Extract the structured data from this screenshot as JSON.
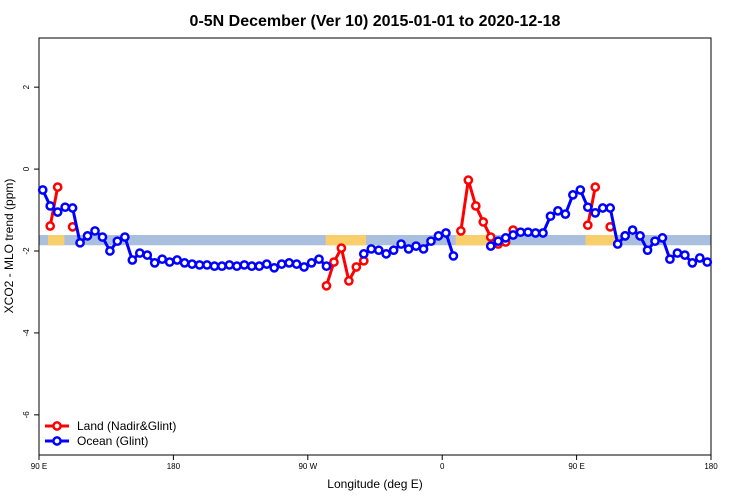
{
  "chart_data": {
    "type": "line",
    "title": "0-5N December (Ver 10)   2015-01-01 to 2020-12-18",
    "x_label": "Longitude (deg E)",
    "y_label": "XCO2 - MLO trend (ppm)",
    "xlim": [
      90,
      540
    ],
    "ylim": [
      -6.98,
      3.2
    ],
    "xticks": [
      {
        "value": 90,
        "label": "90 E"
      },
      180,
      {
        "value": 270,
        "label": "90 W"
      },
      {
        "value": 360,
        "label": "0"
      },
      {
        "value": 450,
        "label": "90 E"
      },
      {
        "value": 540,
        "label": "180"
      }
    ],
    "yticks": [
      -6,
      -4,
      -2,
      0,
      2
    ],
    "legend_position": "bottomleft",
    "mask_band": {
      "ylim": [
        -1.86,
        -1.61
      ],
      "color": "#a9bfdd",
      "land_color": "#f8cf6a",
      "land_segments": [
        [
          96,
          107
        ],
        [
          282,
          309
        ],
        [
          369,
          392
        ],
        [
          456,
          476
        ]
      ]
    },
    "x": [
      92.5,
      97.5,
      102.5,
      107.5,
      112.5,
      117.5,
      122.5,
      127.5,
      132.5,
      137.5,
      142.5,
      147.5,
      152.5,
      157.5,
      162.5,
      167.5,
      172.5,
      177.5,
      182.5,
      187.5,
      192.5,
      197.5,
      202.5,
      207.5,
      212.5,
      217.5,
      222.5,
      227.5,
      232.5,
      237.5,
      242.5,
      247.5,
      252.5,
      257.5,
      262.5,
      267.5,
      272.5,
      277.5,
      282.5,
      287.5,
      292.5,
      297.5,
      302.5,
      307.5,
      312.5,
      317.5,
      322.5,
      327.5,
      332.5,
      337.5,
      342.5,
      347.5,
      352.5,
      357.5,
      362.5,
      367.5,
      372.5,
      377.5,
      382.5,
      387.5,
      392.5,
      397.5,
      402.5,
      407.5,
      412.5,
      417.5,
      422.5,
      427.5,
      432.5,
      437.5,
      442.5,
      447.5,
      452.5,
      457.5,
      462.5,
      467.5,
      472.5,
      477.5,
      482.5,
      487.5,
      492.5,
      497.5,
      502.5,
      507.5,
      512.5,
      517.5,
      522.5,
      527.5,
      532.5,
      537.5
    ],
    "series": [
      {
        "name": "Land (Nadir&Glint)",
        "color": "#ff0000",
        "values": [
          null,
          -1.39,
          -0.44,
          null,
          -1.41,
          null,
          null,
          null,
          null,
          null,
          null,
          null,
          null,
          null,
          null,
          null,
          null,
          null,
          null,
          null,
          null,
          null,
          null,
          null,
          null,
          null,
          null,
          null,
          null,
          null,
          null,
          null,
          null,
          null,
          null,
          null,
          null,
          null,
          -2.85,
          -2.27,
          -1.93,
          -2.73,
          -2.39,
          -2.24,
          null,
          null,
          null,
          null,
          null,
          null,
          null,
          null,
          null,
          null,
          null,
          null,
          -1.51,
          -0.27,
          -0.9,
          -1.29,
          -1.66,
          -1.83,
          -1.78,
          -1.49,
          null,
          null,
          null,
          null,
          null,
          null,
          null,
          null,
          null,
          -1.37,
          -0.44,
          null,
          -1.41,
          null,
          -1.63,
          null,
          null,
          null,
          null,
          null,
          null,
          null,
          null,
          null,
          null,
          null
        ]
      },
      {
        "name": "Ocean (Glint)",
        "color": "#0000ff",
        "values": [
          -0.51,
          -0.9,
          -1.05,
          -0.93,
          -0.95,
          -1.8,
          -1.63,
          -1.51,
          -1.66,
          -2.0,
          -1.76,
          -1.66,
          -2.22,
          -2.05,
          -2.1,
          -2.29,
          -2.2,
          -2.27,
          -2.22,
          -2.29,
          -2.32,
          -2.34,
          -2.34,
          -2.37,
          -2.37,
          -2.34,
          -2.37,
          -2.34,
          -2.37,
          -2.37,
          -2.32,
          -2.41,
          -2.32,
          -2.29,
          -2.32,
          -2.39,
          -2.29,
          -2.2,
          -2.37,
          null,
          null,
          null,
          null,
          -2.07,
          -1.95,
          -1.98,
          -2.07,
          -1.98,
          -1.83,
          -1.95,
          -1.88,
          -1.95,
          -1.76,
          -1.63,
          -1.56,
          -2.12,
          null,
          null,
          null,
          null,
          -1.88,
          -1.76,
          -1.68,
          -1.61,
          -1.54,
          -1.54,
          -1.56,
          -1.56,
          -1.15,
          -1.02,
          -1.1,
          -0.63,
          -0.51,
          -0.93,
          -1.07,
          -0.95,
          -0.95,
          -1.83,
          -1.63,
          -1.49,
          -1.63,
          -1.98,
          -1.76,
          -1.68,
          -2.2,
          -2.05,
          -2.1,
          -2.29,
          -2.17,
          -2.27
        ]
      }
    ]
  }
}
